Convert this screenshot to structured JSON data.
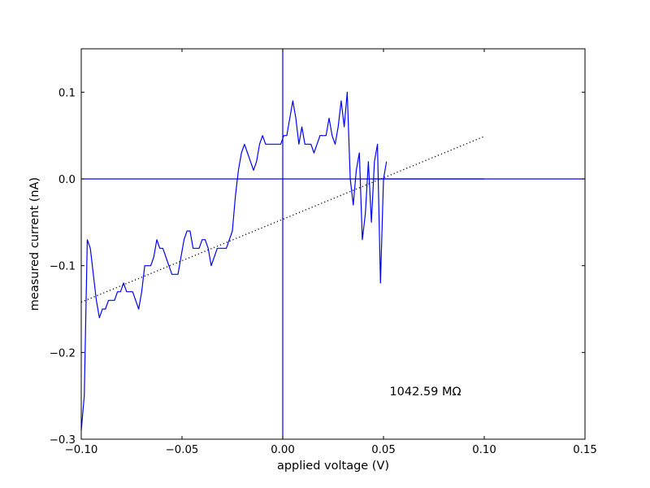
{
  "chart_data": {
    "type": "line",
    "title": "",
    "xlabel": "applied voltage (V)",
    "ylabel": "measured current (nA)",
    "xlim": [
      -0.1,
      0.15
    ],
    "ylim": [
      -0.3,
      0.15
    ],
    "x_ticks": [
      -0.1,
      -0.05,
      0.0,
      0.05,
      0.1,
      0.15
    ],
    "x_tick_labels": [
      "−0.10",
      "−0.05",
      "0.00",
      "0.05",
      "0.10",
      "0.15"
    ],
    "y_ticks": [
      -0.3,
      -0.2,
      -0.1,
      0.0,
      0.1
    ],
    "y_tick_labels": [
      "−0.3",
      "−0.2",
      "−0.1",
      "0.0",
      "0.1"
    ],
    "grid": false,
    "reference_lines": {
      "vertical_x": 0.0,
      "horizontal_y": 0.0,
      "color": "#0000ff"
    },
    "annotation": {
      "text": "1042.59 MΩ",
      "x": 0.053,
      "y": -0.2445
    },
    "series": [
      {
        "style": "solid",
        "color": "#0000ff",
        "points": [
          [
            -0.1,
            -0.29
          ],
          [
            -0.0985,
            -0.25
          ],
          [
            -0.097,
            -0.07
          ],
          [
            -0.0955,
            -0.08
          ],
          [
            -0.094,
            -0.11
          ],
          [
            -0.0925,
            -0.14
          ],
          [
            -0.091,
            -0.16
          ],
          [
            -0.0895,
            -0.15
          ],
          [
            -0.088,
            -0.15
          ],
          [
            -0.0865,
            -0.14
          ],
          [
            -0.085,
            -0.14
          ],
          [
            -0.0835,
            -0.14
          ],
          [
            -0.082,
            -0.13
          ],
          [
            -0.0805,
            -0.13
          ],
          [
            -0.079,
            -0.12
          ],
          [
            -0.0775,
            -0.13
          ],
          [
            -0.076,
            -0.13
          ],
          [
            -0.0745,
            -0.13
          ],
          [
            -0.073,
            -0.14
          ],
          [
            -0.0715,
            -0.15
          ],
          [
            -0.07,
            -0.13
          ],
          [
            -0.0685,
            -0.1
          ],
          [
            -0.067,
            -0.1
          ],
          [
            -0.0655,
            -0.1
          ],
          [
            -0.064,
            -0.09
          ],
          [
            -0.0625,
            -0.07
          ],
          [
            -0.061,
            -0.08
          ],
          [
            -0.0595,
            -0.08
          ],
          [
            -0.058,
            -0.09
          ],
          [
            -0.0565,
            -0.1
          ],
          [
            -0.055,
            -0.11
          ],
          [
            -0.0535,
            -0.11
          ],
          [
            -0.052,
            -0.11
          ],
          [
            -0.0505,
            -0.09
          ],
          [
            -0.049,
            -0.07
          ],
          [
            -0.0475,
            -0.06
          ],
          [
            -0.046,
            -0.06
          ],
          [
            -0.0445,
            -0.08
          ],
          [
            -0.043,
            -0.08
          ],
          [
            -0.0415,
            -0.08
          ],
          [
            -0.04,
            -0.07
          ],
          [
            -0.0385,
            -0.07
          ],
          [
            -0.037,
            -0.08
          ],
          [
            -0.0355,
            -0.1
          ],
          [
            -0.034,
            -0.09
          ],
          [
            -0.0325,
            -0.08
          ],
          [
            -0.031,
            -0.08
          ],
          [
            -0.0295,
            -0.08
          ],
          [
            -0.028,
            -0.08
          ],
          [
            -0.0265,
            -0.07
          ],
          [
            -0.025,
            -0.06
          ],
          [
            -0.0235,
            -0.02
          ],
          [
            -0.022,
            0.01
          ],
          [
            -0.0205,
            0.03
          ],
          [
            -0.019,
            0.04
          ],
          [
            -0.0175,
            0.03
          ],
          [
            -0.016,
            0.02
          ],
          [
            -0.0145,
            0.01
          ],
          [
            -0.013,
            0.02
          ],
          [
            -0.0115,
            0.04
          ],
          [
            -0.01,
            0.05
          ],
          [
            -0.0085,
            0.04
          ],
          [
            -0.007,
            0.04
          ],
          [
            -0.0055,
            0.04
          ],
          [
            -0.004,
            0.04
          ],
          [
            -0.0025,
            0.04
          ],
          [
            -0.001,
            0.04
          ],
          [
            0.0005,
            0.05
          ],
          [
            0.002,
            0.05
          ],
          [
            0.0035,
            0.07
          ],
          [
            0.005,
            0.09
          ],
          [
            0.0065,
            0.07
          ],
          [
            0.008,
            0.04
          ],
          [
            0.0095,
            0.06
          ],
          [
            0.011,
            0.04
          ],
          [
            0.0125,
            0.04
          ],
          [
            0.014,
            0.04
          ],
          [
            0.0155,
            0.03
          ],
          [
            0.017,
            0.04
          ],
          [
            0.0185,
            0.05
          ],
          [
            0.02,
            0.05
          ],
          [
            0.0215,
            0.05
          ],
          [
            0.023,
            0.07
          ],
          [
            0.0245,
            0.05
          ],
          [
            0.026,
            0.04
          ],
          [
            0.0275,
            0.06
          ],
          [
            0.029,
            0.09
          ],
          [
            0.0305,
            0.06
          ],
          [
            0.032,
            0.1
          ],
          [
            0.0335,
            0.0
          ],
          [
            0.035,
            -0.03
          ],
          [
            0.0365,
            0.01
          ],
          [
            0.038,
            0.03
          ],
          [
            0.0395,
            -0.07
          ],
          [
            0.041,
            -0.04
          ],
          [
            0.0425,
            0.02
          ],
          [
            0.044,
            -0.05
          ],
          [
            0.0455,
            0.02
          ],
          [
            0.047,
            0.04
          ],
          [
            0.0485,
            -0.12
          ],
          [
            0.05,
            0.0
          ],
          [
            0.0515,
            0.02
          ]
        ]
      },
      {
        "style": "dotted",
        "color": "#000000",
        "points": [
          [
            -0.1,
            -0.142
          ],
          [
            0.1,
            0.049
          ]
        ]
      },
      {
        "style": "solid",
        "color": "#0000ff",
        "points": [
          [
            0.045,
            0.0
          ],
          [
            0.1,
            0.0
          ]
        ]
      }
    ]
  }
}
